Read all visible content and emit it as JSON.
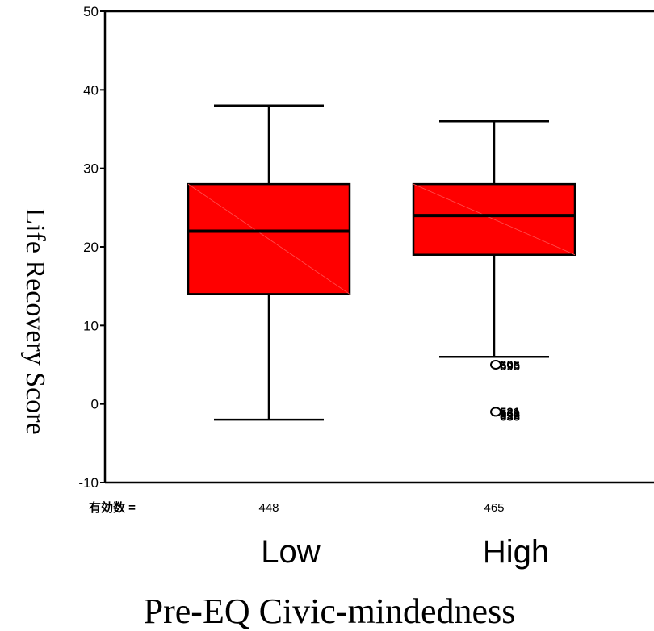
{
  "chart_data": {
    "type": "boxplot",
    "xlabel": "Pre-EQ Civic-mindedness",
    "ylabel": "Life Recovery Score",
    "ylim": [
      -10,
      50
    ],
    "yticks": [
      "50",
      "40",
      "30",
      "20",
      "10",
      "0",
      "-10"
    ],
    "n_label": "有効数 =",
    "box_color": "#ff0000",
    "groups": [
      {
        "category": "Low",
        "n": "448",
        "whisker_low": -2,
        "q1": 14,
        "median": 22,
        "q3": 28,
        "whisker_high": 38,
        "outliers": []
      },
      {
        "category": "High",
        "n": "465",
        "whisker_low": 6,
        "q1": 19,
        "median": 24,
        "q3": 28,
        "whisker_high": 36,
        "outliers": [
          {
            "value": 5,
            "labels": [
              "605",
              "595"
            ]
          },
          {
            "value": -1,
            "labels": [
              "521",
              "560",
              "596",
              "638"
            ]
          }
        ]
      }
    ]
  }
}
